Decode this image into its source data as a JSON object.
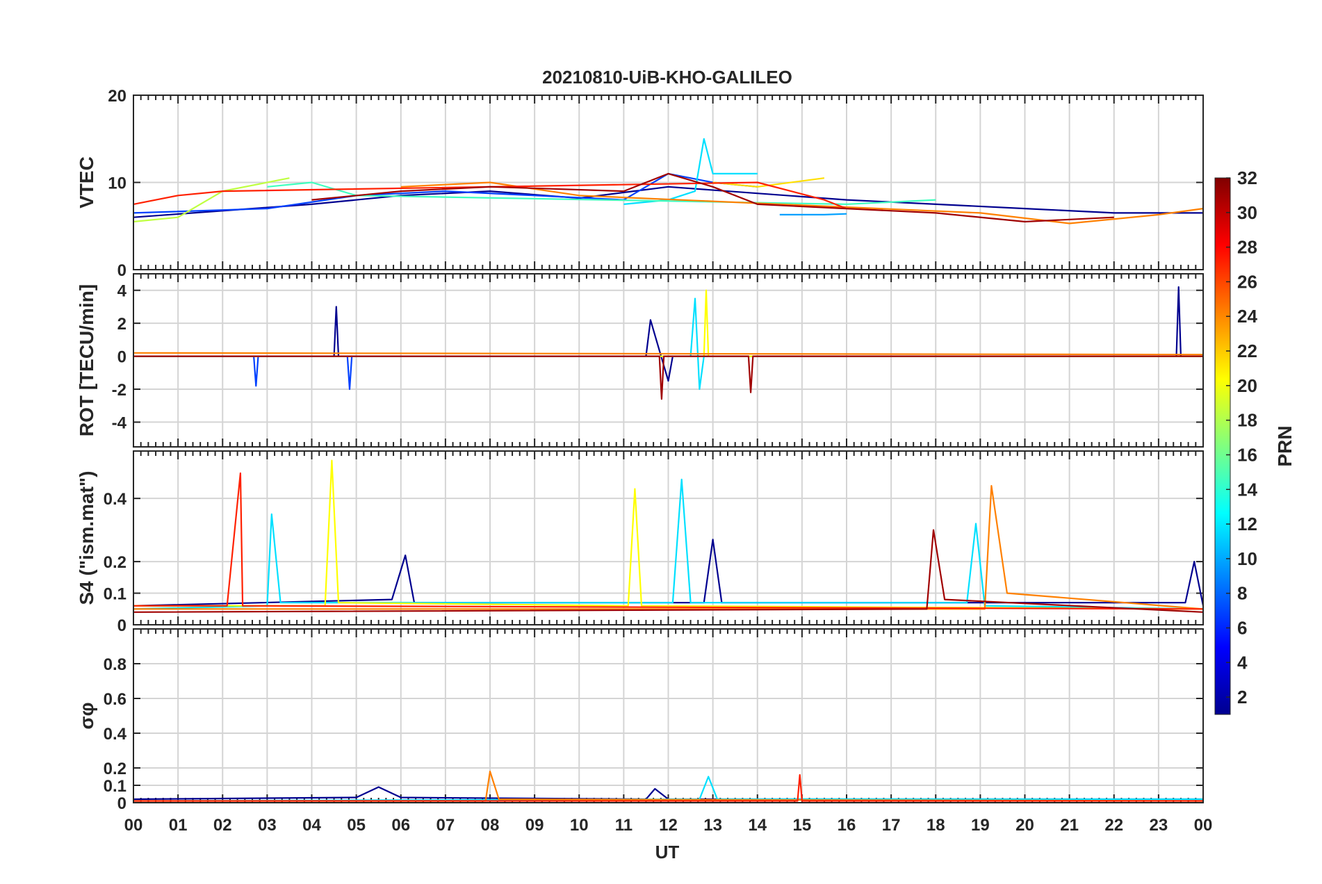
{
  "figure": {
    "title": "20210810-UiB-KHO-GALILEO",
    "xlabel": "UT",
    "x_ticks": [
      "00",
      "01",
      "02",
      "03",
      "04",
      "05",
      "06",
      "07",
      "08",
      "09",
      "10",
      "11",
      "12",
      "13",
      "14",
      "15",
      "16",
      "17",
      "18",
      "19",
      "20",
      "21",
      "22",
      "23",
      "00"
    ],
    "colorbar": {
      "label": "PRN",
      "min": 1,
      "max": 32,
      "ticks": [
        2,
        4,
        6,
        8,
        10,
        12,
        14,
        16,
        18,
        20,
        22,
        24,
        26,
        28,
        30,
        32
      ],
      "colormap": "jet"
    }
  },
  "chart_data": [
    {
      "type": "line",
      "ylabel": "VTEC",
      "xlim": [
        0,
        24
      ],
      "ylim": [
        0,
        20
      ],
      "y_ticks": [
        0,
        10,
        20
      ],
      "grid": true,
      "series": [
        {
          "prn": 1,
          "color": "#00008f",
          "x": [
            0,
            4,
            6,
            8,
            10,
            12,
            16,
            20,
            22,
            24
          ],
          "y": [
            6,
            7.5,
            8.5,
            9,
            8.2,
            9.5,
            8,
            7,
            6.5,
            6.5
          ]
        },
        {
          "prn": 4,
          "color": "#0040ff",
          "x": [
            0,
            3,
            5,
            7,
            9,
            11,
            12,
            13,
            14
          ],
          "y": [
            6.5,
            7,
            8.5,
            9,
            8.5,
            8,
            11,
            10,
            9.5
          ]
        },
        {
          "prn": 10,
          "color": "#00a0ff",
          "x": [
            14.5,
            15.5,
            16
          ],
          "y": [
            6.3,
            6.3,
            6.4
          ]
        },
        {
          "prn": 12,
          "color": "#00e0ff",
          "x": [
            11,
            12,
            12.6,
            12.8,
            13,
            14
          ],
          "y": [
            7.5,
            8,
            9,
            15,
            11,
            11
          ]
        },
        {
          "prn": 15,
          "color": "#40ffbf",
          "x": [
            3,
            4,
            5,
            16,
            18
          ],
          "y": [
            9.5,
            10,
            8.5,
            7.5,
            8
          ]
        },
        {
          "prn": 19,
          "color": "#bfff40",
          "x": [
            0,
            1,
            2,
            3.5
          ],
          "y": [
            5.5,
            6,
            9,
            10.5
          ]
        },
        {
          "prn": 21,
          "color": "#ffdf00",
          "x": [
            13,
            14,
            15.5
          ],
          "y": [
            10,
            9.5,
            10.5
          ]
        },
        {
          "prn": 24,
          "color": "#ff8000",
          "x": [
            6,
            8,
            10,
            19,
            21,
            23,
            24
          ],
          "y": [
            9.5,
            10,
            8.5,
            6.5,
            5.3,
            6.3,
            7
          ]
        },
        {
          "prn": 27,
          "color": "#ff2000",
          "x": [
            0,
            1,
            2,
            14,
            15.5,
            16
          ],
          "y": [
            7.5,
            8.5,
            9,
            10,
            8,
            7
          ]
        },
        {
          "prn": 31,
          "color": "#a00000",
          "x": [
            4,
            6,
            8,
            11,
            12,
            13,
            14,
            18,
            20,
            22
          ],
          "y": [
            8,
            9,
            9.5,
            9,
            11,
            9.5,
            7.5,
            6.5,
            5.5,
            6
          ]
        }
      ]
    },
    {
      "type": "line",
      "ylabel": "ROT [TECU/min]",
      "xlim": [
        0,
        24
      ],
      "ylim": [
        -5.5,
        5
      ],
      "y_ticks": [
        -4,
        -2,
        0,
        2,
        4
      ],
      "grid": true,
      "series": [
        {
          "prn": 1,
          "color": "#00008f",
          "x": [
            0,
            4.5,
            4.55,
            4.6,
            11.5,
            11.6,
            12,
            12.1,
            23.4,
            23.45,
            23.5,
            24
          ],
          "y": [
            0,
            0,
            3,
            0,
            0,
            2.2,
            -1.5,
            0,
            0,
            4.2,
            0,
            0
          ]
        },
        {
          "prn": 4,
          "color": "#0040ff",
          "x": [
            0,
            2.7,
            2.75,
            2.8,
            4.8,
            4.85,
            4.9,
            24
          ],
          "y": [
            0,
            0,
            -1.8,
            0,
            0,
            -2,
            0,
            0
          ]
        },
        {
          "prn": 12,
          "color": "#00e0ff",
          "x": [
            0,
            12.5,
            12.6,
            12.7,
            12.8,
            24
          ],
          "y": [
            0,
            0,
            3.5,
            -2,
            0,
            0
          ]
        },
        {
          "prn": 20,
          "color": "#ffff00",
          "x": [
            0,
            12.8,
            12.85,
            12.9,
            24
          ],
          "y": [
            0,
            0,
            4,
            0,
            0
          ]
        },
        {
          "prn": 24,
          "color": "#ff8000",
          "x": [
            0,
            24
          ],
          "y": [
            0.2,
            0.1
          ]
        },
        {
          "prn": 31,
          "color": "#a00000",
          "x": [
            0,
            11.8,
            11.85,
            11.9,
            13.8,
            13.85,
            13.9,
            24
          ],
          "y": [
            0,
            0,
            -2.6,
            0,
            0,
            -2.2,
            0,
            0
          ]
        }
      ]
    },
    {
      "type": "line",
      "ylabel": "S4 (\"ism.mat\")",
      "xlim": [
        0,
        24
      ],
      "ylim": [
        0,
        0.55
      ],
      "y_ticks": [
        0,
        0.1,
        0.2,
        0.4
      ],
      "grid": true,
      "series": [
        {
          "prn": 1,
          "color": "#00008f",
          "x": [
            0,
            5.8,
            6.1,
            6.3,
            12.8,
            13,
            13.2,
            23.6,
            23.8,
            24
          ],
          "y": [
            0.06,
            0.08,
            0.22,
            0.07,
            0.07,
            0.27,
            0.07,
            0.07,
            0.2,
            0.06
          ]
        },
        {
          "prn": 12,
          "color": "#00e0ff",
          "x": [
            0,
            3,
            3.1,
            3.3,
            12.1,
            12.3,
            12.5,
            18.7,
            18.9,
            19.1,
            24
          ],
          "y": [
            0.05,
            0.06,
            0.35,
            0.07,
            0.07,
            0.46,
            0.07,
            0.07,
            0.32,
            0.06,
            0.05
          ]
        },
        {
          "prn": 20,
          "color": "#ffff00",
          "x": [
            0,
            4.3,
            4.45,
            4.6,
            11.1,
            11.25,
            11.4,
            24
          ],
          "y": [
            0.06,
            0.06,
            0.52,
            0.07,
            0.06,
            0.43,
            0.06,
            0.05
          ]
        },
        {
          "prn": 24,
          "color": "#ff8000",
          "x": [
            0,
            19.1,
            19.25,
            19.6,
            24
          ],
          "y": [
            0.05,
            0.05,
            0.44,
            0.1,
            0.05
          ]
        },
        {
          "prn": 27,
          "color": "#ff2000",
          "x": [
            0,
            2.1,
            2.4,
            2.45,
            24
          ],
          "y": [
            0.06,
            0.06,
            0.48,
            0.06,
            0.05
          ]
        },
        {
          "prn": 31,
          "color": "#a00000",
          "x": [
            0,
            17.8,
            17.95,
            18.2,
            24
          ],
          "y": [
            0.04,
            0.05,
            0.3,
            0.08,
            0.04
          ]
        }
      ]
    },
    {
      "type": "line",
      "ylabel": "σφ",
      "xlim": [
        0,
        24
      ],
      "ylim": [
        0,
        1
      ],
      "y_ticks": [
        0,
        0.1,
        0.2,
        0.4,
        0.6,
        0.8
      ],
      "grid": true,
      "series": [
        {
          "prn": 1,
          "color": "#00008f",
          "x": [
            0,
            5,
            5.5,
            6,
            11.5,
            11.7,
            12,
            24
          ],
          "y": [
            0.02,
            0.03,
            0.09,
            0.03,
            0.02,
            0.08,
            0.02,
            0.02
          ]
        },
        {
          "prn": 12,
          "color": "#00e0ff",
          "x": [
            0,
            12.7,
            12.9,
            13.1,
            24
          ],
          "y": [
            0.01,
            0.02,
            0.15,
            0.02,
            0.02
          ]
        },
        {
          "prn": 24,
          "color": "#ff8000",
          "x": [
            0,
            7.9,
            8,
            8.2,
            24
          ],
          "y": [
            0.01,
            0.01,
            0.18,
            0.02,
            0.01
          ]
        },
        {
          "prn": 27,
          "color": "#ff2000",
          "x": [
            0,
            14.9,
            14.95,
            15,
            24
          ],
          "y": [
            0.01,
            0.01,
            0.16,
            0.01,
            0.01
          ]
        }
      ]
    }
  ]
}
